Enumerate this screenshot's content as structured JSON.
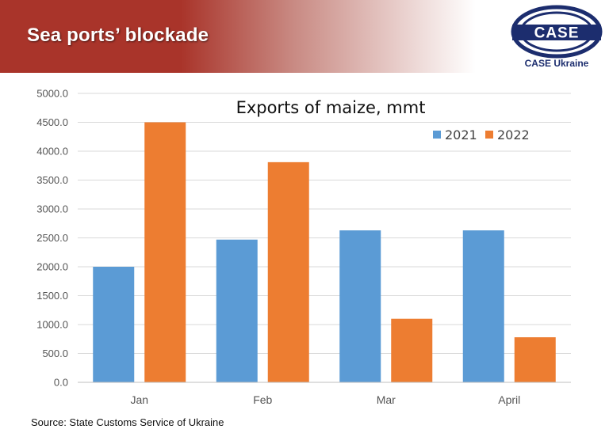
{
  "header": {
    "title": "Sea ports’ blockade",
    "accent_color": "#a9342a"
  },
  "logo": {
    "text": "CASE",
    "caption": "CASE Ukraine",
    "color": "#1c2d6e"
  },
  "source": "Source: State Customs Service of Ukraine",
  "chart_data": {
    "type": "bar",
    "title": "Exports of maize, mmt",
    "categories": [
      "Jan",
      "Feb",
      "Mar",
      "April"
    ],
    "series": [
      {
        "name": "2021",
        "values": [
          2000,
          2470,
          2630,
          2630
        ],
        "color": "#5b9bd5"
      },
      {
        "name": "2022",
        "values": [
          4500,
          3810,
          1100,
          780
        ],
        "color": "#ed7d31"
      }
    ],
    "ylim": [
      0,
      5000
    ],
    "yticks": [
      0,
      500,
      1000,
      1500,
      2000,
      2500,
      3000,
      3500,
      4000,
      4500,
      5000
    ],
    "ytick_labels": [
      "0.0",
      "500.0",
      "1000.0",
      "1500.0",
      "2000.0",
      "2500.0",
      "3000.0",
      "3500.0",
      "4000.0",
      "4500.0",
      "5000.0"
    ],
    "xlabel": "",
    "ylabel": "",
    "grid": true,
    "legend_position": "top-right"
  }
}
